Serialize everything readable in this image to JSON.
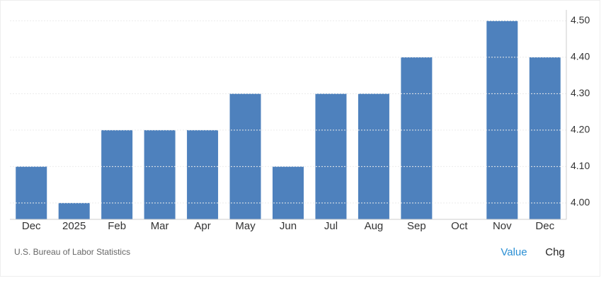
{
  "chart_data": {
    "type": "bar",
    "categories": [
      "Dec",
      "2025",
      "Feb",
      "Mar",
      "Apr",
      "May",
      "Jun",
      "Jul",
      "Aug",
      "Sep",
      "Oct",
      "Nov",
      "Dec"
    ],
    "values": [
      4.1,
      4.0,
      4.2,
      4.2,
      4.2,
      4.3,
      4.1,
      4.3,
      4.3,
      4.4,
      null,
      4.5,
      4.4
    ],
    "color": "#4e81bd",
    "ylim": [
      3.955,
      4.53
    ],
    "yticks": [
      {
        "value": 4.0,
        "label": "4.00"
      },
      {
        "value": 4.1,
        "label": "4.10"
      },
      {
        "value": 4.2,
        "label": "4.20"
      },
      {
        "value": 4.3,
        "label": "4.30"
      },
      {
        "value": 4.4,
        "label": "4.40"
      },
      {
        "value": 4.5,
        "label": "4.50"
      }
    ],
    "grid": true,
    "source": "U.S. Bureau of Labor Statistics",
    "tabs": [
      "Value",
      "Chg"
    ]
  }
}
